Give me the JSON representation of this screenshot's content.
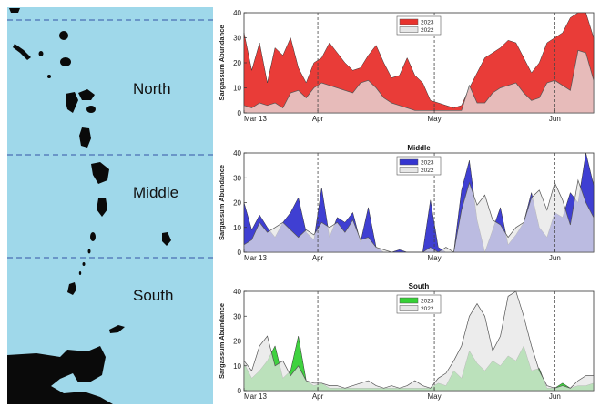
{
  "map": {
    "regions": [
      {
        "name": "North"
      },
      {
        "name": "Middle"
      },
      {
        "name": "South"
      }
    ],
    "colors": {
      "sea": "#9fd8ea",
      "land": "#0a0a0a",
      "divider": "#4a6fb5"
    }
  },
  "chart_data": [
    {
      "type": "area",
      "title": "",
      "ylabel": "Sargassum Abundance",
      "ylim": [
        0,
        40
      ],
      "yticks": [
        "0",
        "10",
        "20",
        "30",
        "40"
      ],
      "xticks": [
        {
          "label": "Mar 13",
          "day": 0
        },
        {
          "label": "Apr",
          "day": 19
        },
        {
          "label": "May",
          "day": 49
        },
        {
          "label": "Jun",
          "day": 80
        }
      ],
      "xlim": [
        0,
        90
      ],
      "day_step": 2,
      "series": [
        {
          "name": "2023",
          "color": "#e8322d",
          "values": [
            32,
            17,
            28,
            12,
            26,
            23,
            30,
            18,
            12,
            20,
            22,
            28,
            24,
            20,
            17,
            18,
            23,
            27,
            20,
            14,
            15,
            22,
            15,
            12,
            5,
            4,
            3,
            2,
            3,
            10,
            16,
            22,
            24,
            26,
            29,
            28,
            22,
            16,
            20,
            28,
            30,
            32,
            38,
            40,
            44,
            30
          ]
        },
        {
          "name": "2022",
          "color": "#e6e6e6",
          "values": [
            3,
            2,
            4,
            3,
            4,
            2,
            8,
            9,
            6,
            10,
            12,
            11,
            10,
            9,
            8,
            12,
            13,
            10,
            6,
            4,
            3,
            2,
            1,
            1,
            1,
            1,
            1,
            1,
            1,
            11,
            4,
            4,
            8,
            10,
            11,
            12,
            8,
            5,
            6,
            12,
            13,
            11,
            9,
            25,
            24,
            13
          ]
        }
      ]
    },
    {
      "type": "area",
      "title": "Middle",
      "ylabel": "Sargassum Abundance",
      "ylim": [
        0,
        40
      ],
      "yticks": [
        "0",
        "10",
        "20",
        "30",
        "40"
      ],
      "xticks": [
        {
          "label": "Mar 13",
          "day": 0
        },
        {
          "label": "Apr",
          "day": 19
        },
        {
          "label": "May",
          "day": 49
        },
        {
          "label": "Jun",
          "day": 80
        }
      ],
      "xlim": [
        0,
        90
      ],
      "day_step": 2,
      "series": [
        {
          "name": "2023",
          "color": "#3535d0",
          "values": [
            20,
            9,
            15,
            10,
            6,
            12,
            16,
            22,
            8,
            5,
            26,
            6,
            14,
            12,
            16,
            4,
            18,
            2,
            0,
            0,
            1,
            0,
            0,
            0,
            21,
            2,
            0,
            0,
            25,
            37,
            13,
            0,
            9,
            18,
            3,
            7,
            12,
            24,
            10,
            6,
            16,
            14,
            24,
            20,
            40,
            27
          ]
        },
        {
          "name": "2022",
          "color": "#e6e6e6",
          "values": [
            3,
            5,
            12,
            8,
            10,
            12,
            9,
            6,
            9,
            7,
            12,
            10,
            12,
            8,
            13,
            5,
            6,
            2,
            1,
            0,
            0,
            0,
            0,
            0,
            2,
            0,
            2,
            0,
            17,
            28,
            19,
            23,
            13,
            11,
            6,
            10,
            12,
            22,
            25,
            17,
            28,
            21,
            11,
            29,
            20,
            14
          ]
        }
      ]
    },
    {
      "type": "area",
      "title": "South",
      "ylabel": "Sargassum Abundance",
      "ylim": [
        0,
        40
      ],
      "yticks": [
        "0",
        "10",
        "20",
        "30",
        "40"
      ],
      "xticks": [
        {
          "label": "Mar 13",
          "day": 0
        },
        {
          "label": "Apr",
          "day": 19
        },
        {
          "label": "May",
          "day": 49
        },
        {
          "label": "Jun",
          "day": 80
        }
      ],
      "xlim": [
        0,
        90
      ],
      "day_step": 2,
      "series": [
        {
          "name": "2023",
          "color": "#35d035",
          "values": [
            11,
            5,
            8,
            12,
            18,
            5,
            8,
            22,
            4,
            2,
            3,
            1,
            1,
            1,
            1,
            1,
            1,
            1,
            1,
            1,
            1,
            1,
            1,
            1,
            1,
            3,
            2,
            8,
            5,
            16,
            11,
            8,
            12,
            10,
            14,
            12,
            18,
            8,
            9,
            1,
            1,
            3,
            1,
            2,
            2,
            3
          ]
        },
        {
          "name": "2022",
          "color": "#e6e6e6",
          "values": [
            12,
            8,
            18,
            22,
            10,
            12,
            6,
            10,
            4,
            3,
            3,
            2,
            2,
            1,
            2,
            3,
            4,
            2,
            1,
            2,
            1,
            2,
            4,
            2,
            1,
            5,
            7,
            12,
            18,
            30,
            35,
            30,
            16,
            22,
            38,
            45,
            30,
            18,
            8,
            2,
            1,
            2,
            1,
            4,
            6,
            6
          ]
        }
      ]
    }
  ]
}
